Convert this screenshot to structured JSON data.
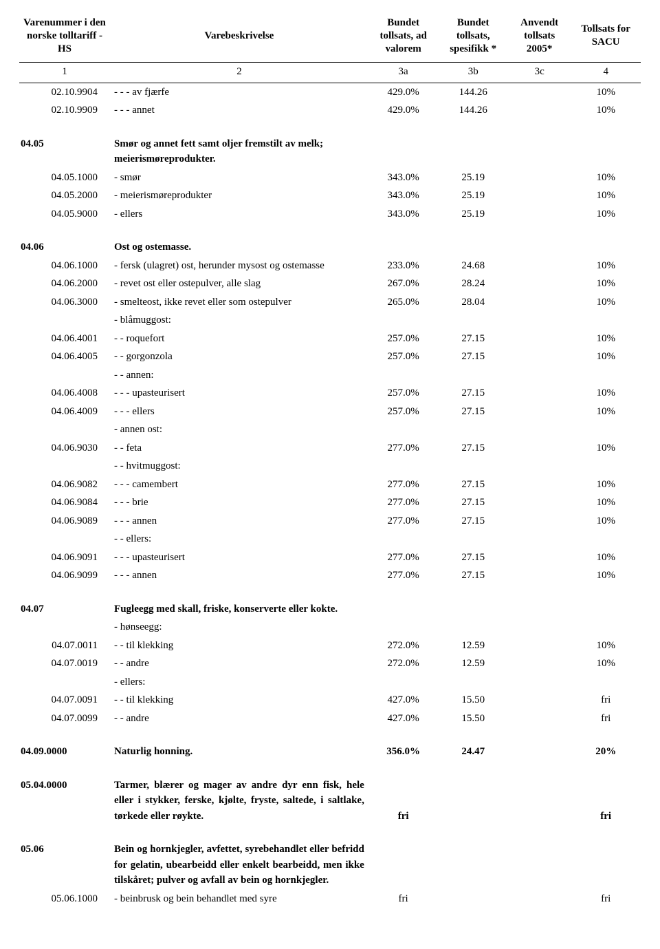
{
  "headers": {
    "col1": "Varenummer i den norske tolltariff - HS",
    "col2": "Varebeskrivelse",
    "col3": "Bundet tollsats, ad valorem",
    "col4": "Bundet tollsats, spesifikk *",
    "col5": "Anvendt tollsats 2005*",
    "col6": "Tollsats for SACU",
    "sub1": "1",
    "sub2": "2",
    "sub3": "3a",
    "sub4": "3b",
    "sub5": "3c",
    "sub6": "4"
  },
  "rows": [
    {
      "code": "02.10.9904",
      "codeStyle": "code",
      "desc": "- - - av fjærfe",
      "c3": "429.0%",
      "c4": "144.26",
      "c5": "",
      "c6": "10%"
    },
    {
      "code": "02.10.9909",
      "codeStyle": "code",
      "desc": "- - - annet",
      "c3": "429.0%",
      "c4": "144.26",
      "c5": "",
      "c6": "10%"
    },
    {
      "spacer": true
    },
    {
      "code": "04.05",
      "codeStyle": "codebold",
      "desc": "Smør og annet fett samt oljer fremstilt av melk; meierismøreprodukter.",
      "bold": true
    },
    {
      "code": "04.05.1000",
      "codeStyle": "code",
      "desc": "- smør",
      "c3": "343.0%",
      "c4": "25.19",
      "c5": "",
      "c6": "10%"
    },
    {
      "code": "04.05.2000",
      "codeStyle": "code",
      "desc": "- meierismøreprodukter",
      "c3": "343.0%",
      "c4": "25.19",
      "c5": "",
      "c6": "10%"
    },
    {
      "code": "04.05.9000",
      "codeStyle": "code",
      "desc": "- ellers",
      "c3": "343.0%",
      "c4": "25.19",
      "c5": "",
      "c6": "10%"
    },
    {
      "spacer": true
    },
    {
      "code": "04.06",
      "codeStyle": "codebold",
      "desc": "Ost og ostemasse.",
      "bold": true
    },
    {
      "code": "04.06.1000",
      "codeStyle": "code",
      "desc": "- fersk (ulagret) ost, herunder mysost og ostemasse",
      "c3": "233.0%",
      "c4": "24.68",
      "c5": "",
      "c6": "10%"
    },
    {
      "code": "04.06.2000",
      "codeStyle": "code",
      "desc": "- revet ost eller ostepulver, alle slag",
      "c3": "267.0%",
      "c4": "28.24",
      "c5": "",
      "c6": "10%"
    },
    {
      "code": "04.06.3000",
      "codeStyle": "code",
      "desc": "- smelteost, ikke revet eller som ostepulver",
      "c3": "265.0%",
      "c4": "28.04",
      "c5": "",
      "c6": "10%"
    },
    {
      "code": "",
      "codeStyle": "code",
      "desc": "- blåmuggost:"
    },
    {
      "code": "04.06.4001",
      "codeStyle": "code",
      "desc": "- - roquefort",
      "c3": "257.0%",
      "c4": "27.15",
      "c5": "",
      "c6": "10%"
    },
    {
      "code": "04.06.4005",
      "codeStyle": "code",
      "desc": "- - gorgonzola",
      "c3": "257.0%",
      "c4": "27.15",
      "c5": "",
      "c6": "10%"
    },
    {
      "code": "",
      "codeStyle": "code",
      "desc": "- - annen:"
    },
    {
      "code": "04.06.4008",
      "codeStyle": "code",
      "desc": "- - - upasteurisert",
      "c3": "257.0%",
      "c4": "27.15",
      "c5": "",
      "c6": "10%"
    },
    {
      "code": "04.06.4009",
      "codeStyle": "code",
      "desc": "- - - ellers",
      "c3": "257.0%",
      "c4": "27.15",
      "c5": "",
      "c6": "10%"
    },
    {
      "code": "",
      "codeStyle": "code",
      "desc": "- annen ost:"
    },
    {
      "code": "04.06.9030",
      "codeStyle": "code",
      "desc": "- - feta",
      "c3": "277.0%",
      "c4": "27.15",
      "c5": "",
      "c6": "10%"
    },
    {
      "code": "",
      "codeStyle": "code",
      "desc": "- - hvitmuggost:"
    },
    {
      "code": "04.06.9082",
      "codeStyle": "code",
      "desc": "- - - camembert",
      "c3": "277.0%",
      "c4": "27.15",
      "c5": "",
      "c6": "10%"
    },
    {
      "code": "04.06.9084",
      "codeStyle": "code",
      "desc": "- - - brie",
      "c3": "277.0%",
      "c4": "27.15",
      "c5": "",
      "c6": "10%"
    },
    {
      "code": "04.06.9089",
      "codeStyle": "code",
      "desc": "- - - annen",
      "c3": "277.0%",
      "c4": "27.15",
      "c5": "",
      "c6": "10%"
    },
    {
      "code": "",
      "codeStyle": "code",
      "desc": "- - ellers:"
    },
    {
      "code": "04.06.9091",
      "codeStyle": "code",
      "desc": "- - - upasteurisert",
      "c3": "277.0%",
      "c4": "27.15",
      "c5": "",
      "c6": "10%"
    },
    {
      "code": "04.06.9099",
      "codeStyle": "code",
      "desc": "- - - annen",
      "c3": "277.0%",
      "c4": "27.15",
      "c5": "",
      "c6": "10%"
    },
    {
      "spacer": true
    },
    {
      "code": "04.07",
      "codeStyle": "codebold",
      "desc": "Fugleegg med skall, friske, konserverte eller kokte.",
      "bold": true
    },
    {
      "code": "",
      "codeStyle": "code",
      "desc": "- hønseegg:"
    },
    {
      "code": "04.07.0011",
      "codeStyle": "code",
      "desc": "- - til klekking",
      "c3": "272.0%",
      "c4": "12.59",
      "c5": "",
      "c6": "10%"
    },
    {
      "code": "04.07.0019",
      "codeStyle": "code",
      "desc": "- - andre",
      "c3": "272.0%",
      "c4": "12.59",
      "c5": "",
      "c6": "10%"
    },
    {
      "code": "",
      "codeStyle": "code",
      "desc": "- ellers:"
    },
    {
      "code": "04.07.0091",
      "codeStyle": "code",
      "desc": "- - til klekking",
      "c3": "427.0%",
      "c4": "15.50",
      "c5": "",
      "c6": "fri"
    },
    {
      "code": "04.07.0099",
      "codeStyle": "code",
      "desc": "- - andre",
      "c3": "427.0%",
      "c4": "15.50",
      "c5": "",
      "c6": "fri"
    },
    {
      "spacer": true
    },
    {
      "code": "04.09.0000",
      "codeStyle": "codebold",
      "desc": "Naturlig honning.",
      "bold": true,
      "c3": "356.0%",
      "c4": "24.47",
      "c5": "",
      "c6": "20%"
    },
    {
      "spacer": true
    },
    {
      "code": "05.04.0000",
      "codeStyle": "codebold",
      "desc": "Tarmer, blærer og mager av andre dyr enn fisk, hele eller i stykker, ferske, kjølte, fryste, saltede, i saltlake, tørkede eller røykte.",
      "bold": true,
      "justify": true,
      "c3": "fri",
      "c4": "",
      "c5": "",
      "c6": "fri",
      "valBottom": true
    },
    {
      "spacer": true
    },
    {
      "code": "05.06",
      "codeStyle": "codebold",
      "desc": "Bein og hornkjegler, avfettet, syrebehandlet eller befridd for gelatin, ubearbeidd eller enkelt bearbeidd, men ikke tilskåret; pulver og avfall av bein og hornkjegler.",
      "bold": true,
      "justify": true
    },
    {
      "code": "05.06.1000",
      "codeStyle": "code",
      "desc": "- beinbrusk og bein behandlet med syre",
      "c3": "fri",
      "c4": "",
      "c5": "",
      "c6": "fri"
    }
  ]
}
